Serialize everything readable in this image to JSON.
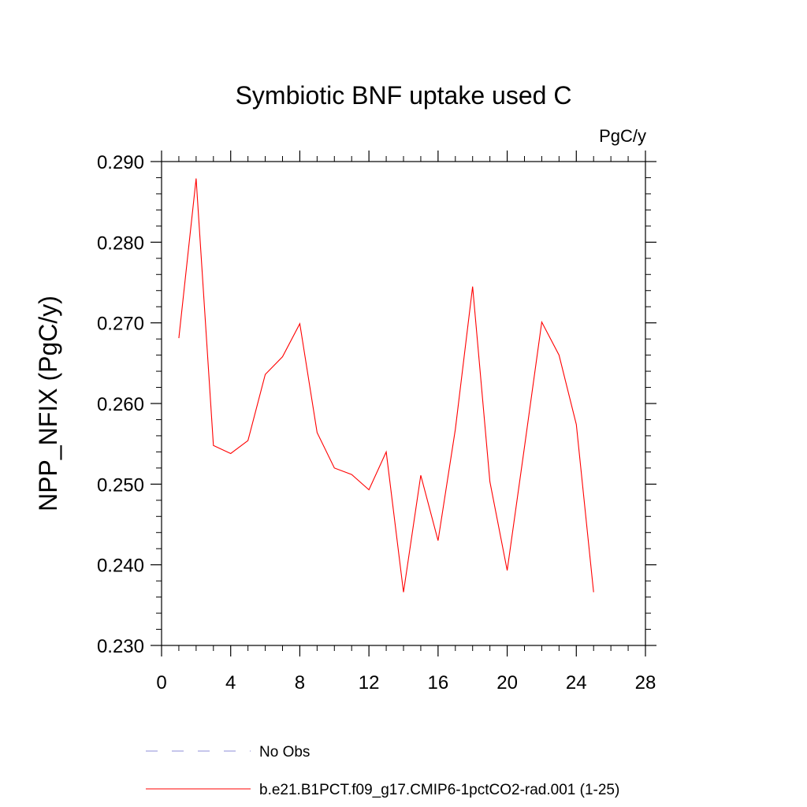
{
  "chart_data": {
    "type": "line",
    "title": "Symbiotic BNF uptake used C",
    "units": "PgC/y",
    "ylabel": "NPP_NFIX  (PgC/y)",
    "xlabel": "",
    "xlim": [
      0,
      28
    ],
    "ylim": [
      0.23,
      0.29
    ],
    "xticks": [
      0,
      4,
      8,
      12,
      16,
      20,
      24,
      28
    ],
    "xtick_labels": [
      "0",
      "4",
      "8",
      "12",
      "16",
      "20",
      "24",
      "28"
    ],
    "yticks": [
      0.23,
      0.24,
      0.25,
      0.26,
      0.27,
      0.28,
      0.29
    ],
    "ytick_labels": [
      "0.230",
      "0.240",
      "0.250",
      "0.260",
      "0.270",
      "0.280",
      "0.290"
    ],
    "grid": false,
    "legend_position": "bottom",
    "series": [
      {
        "name": "b.e21.B1PCT.f09_g17.CMIP6-1pctCO2-rad.001 (1-25)",
        "color": "#ff0000",
        "style": "solid",
        "x": [
          1,
          2,
          3,
          4,
          5,
          6,
          7,
          8,
          9,
          10,
          11,
          12,
          13,
          14,
          15,
          16,
          17,
          18,
          19,
          20,
          21,
          22,
          23,
          24,
          25
        ],
        "y": [
          0.2681,
          0.2879,
          0.2548,
          0.2538,
          0.2554,
          0.2636,
          0.2658,
          0.2699,
          0.2564,
          0.252,
          0.2512,
          0.2493,
          0.254,
          0.2366,
          0.2511,
          0.243,
          0.2568,
          0.2745,
          0.2503,
          0.2393,
          0.2546,
          0.2701,
          0.266,
          0.2574,
          0.2366
        ]
      }
    ],
    "legend": [
      {
        "label": "No Obs",
        "color": "#8c8cd9",
        "style": "dashed"
      },
      {
        "label": "b.e21.B1PCT.f09_g17.CMIP6-1pctCO2-rad.001 (1-25)",
        "color": "#ff0000",
        "style": "solid"
      }
    ]
  }
}
